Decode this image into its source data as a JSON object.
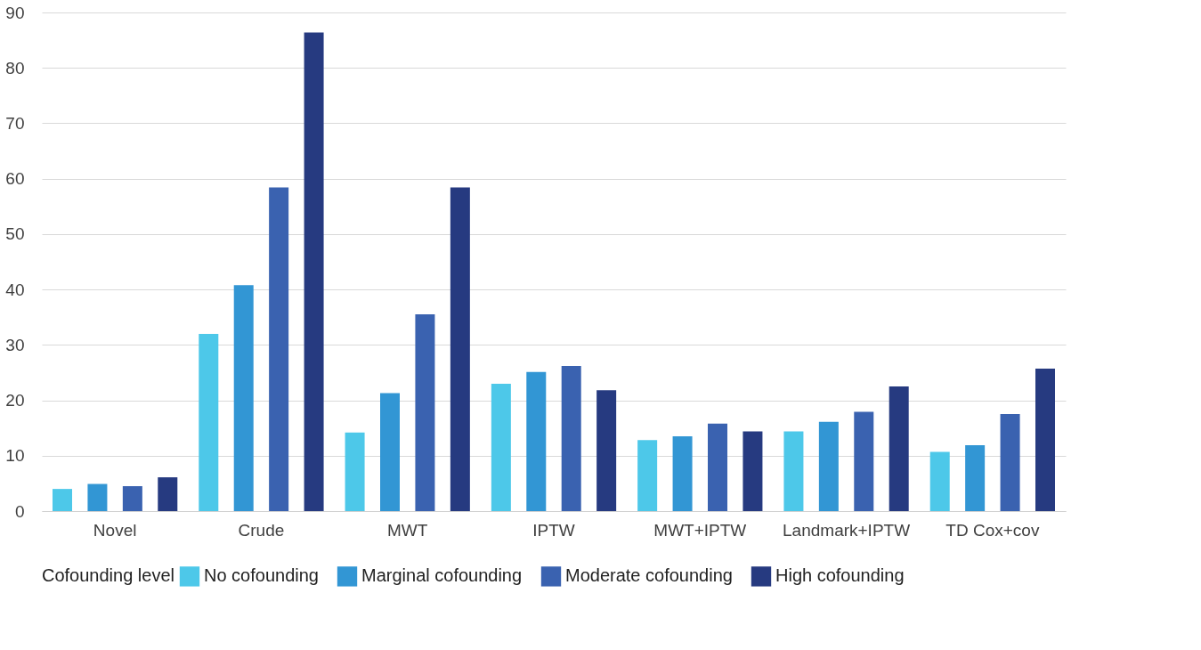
{
  "chart_data": {
    "type": "bar",
    "categories": [
      "Novel",
      "Crude",
      "MWT",
      "IPTW",
      "MWT+IPTW",
      "Landmark+IPTW",
      "TD Cox+cov"
    ],
    "series": [
      {
        "name": "No cofounding",
        "color": "#4dc8e9",
        "values": [
          4.0,
          32.0,
          14.2,
          23.0,
          12.8,
          14.4,
          10.7
        ]
      },
      {
        "name": "Marginal cofounding",
        "color": "#3296d4",
        "values": [
          4.9,
          40.8,
          21.3,
          25.1,
          13.5,
          16.1,
          11.9
        ]
      },
      {
        "name": "Moderate cofounding",
        "color": "#3a62b0",
        "values": [
          4.5,
          58.4,
          35.5,
          26.2,
          15.8,
          17.9,
          17.5
        ]
      },
      {
        "name": "High cofounding",
        "color": "#263a80",
        "values": [
          6.1,
          86.4,
          58.4,
          21.8,
          14.4,
          22.5,
          25.7
        ]
      }
    ],
    "legend_title": "Cofounding level",
    "ylim": [
      0,
      90
    ],
    "yticks": [
      0,
      10,
      20,
      30,
      40,
      50,
      60,
      70,
      80,
      90
    ],
    "grid": "y",
    "legend": "bottom"
  }
}
